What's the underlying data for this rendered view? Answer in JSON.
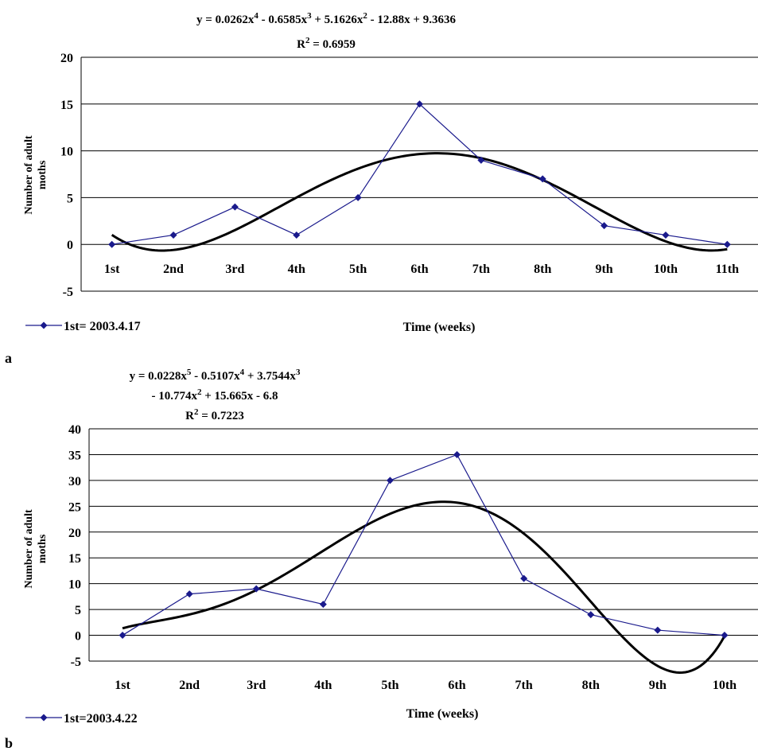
{
  "chart_data": [
    {
      "panel": "a",
      "type": "line",
      "categories": [
        "1st",
        "2nd",
        "3rd",
        "4th",
        "5th",
        "6th",
        "7th",
        "8th",
        "9th",
        "10th",
        "11th"
      ],
      "series": [
        {
          "name": "1st= 2003.4.17",
          "values": [
            0,
            1,
            4,
            1,
            5,
            15,
            9,
            7,
            2,
            1,
            0
          ],
          "color": "#1a1a8c"
        }
      ],
      "trendline": {
        "type": "polynomial",
        "coefficients_desc": [
          0.0262,
          -0.6585,
          5.1626,
          -12.88,
          9.3636
        ],
        "color": "#000000"
      },
      "equation_lines": [
        [
          "y = 0.0262x",
          "4",
          " - 0.6585x",
          "3",
          " + 5.1626x",
          "2",
          " - 12.88x + 9.3636"
        ],
        [
          "R",
          "2",
          " = 0.6959"
        ]
      ],
      "xlabel": "Time  (weeks)",
      "ylabel_lines": [
        "Number of adult",
        "moths"
      ],
      "ylim": [
        -5,
        20
      ],
      "yticks": [
        20,
        15,
        10,
        5,
        0,
        -5
      ],
      "grid": true,
      "legend_position": "bottom-left"
    },
    {
      "panel": "b",
      "type": "line",
      "categories": [
        "1st",
        "2nd",
        "3rd",
        "4th",
        "5th",
        "6th",
        "7th",
        "8th",
        "9th",
        "10th"
      ],
      "series": [
        {
          "name": "1st=2003.4.22",
          "values": [
            0,
            8,
            9,
            6,
            30,
            35,
            11,
            4,
            1,
            0
          ],
          "color": "#1a1a8c"
        }
      ],
      "trendline": {
        "type": "polynomial",
        "coefficients_desc": [
          0.0228,
          -0.5107,
          3.7544,
          -10.774,
          15.665,
          -6.8
        ],
        "color": "#000000"
      },
      "equation_lines": [
        [
          "y = 0.0228x",
          "5",
          " - 0.5107x",
          "4",
          " + 3.7544x",
          "3",
          ""
        ],
        [
          "- 10.774x",
          "2",
          " + 15.665x - 6.8"
        ],
        [
          "R",
          "2",
          " = 0.7223"
        ]
      ],
      "xlabel": "Time (weeks)",
      "ylabel_lines": [
        "Number of adult",
        "moths"
      ],
      "ylim": [
        -5,
        40
      ],
      "yticks": [
        40,
        35,
        30,
        25,
        20,
        15,
        10,
        5,
        0,
        -5
      ],
      "grid": true,
      "legend_position": "bottom-left"
    }
  ]
}
